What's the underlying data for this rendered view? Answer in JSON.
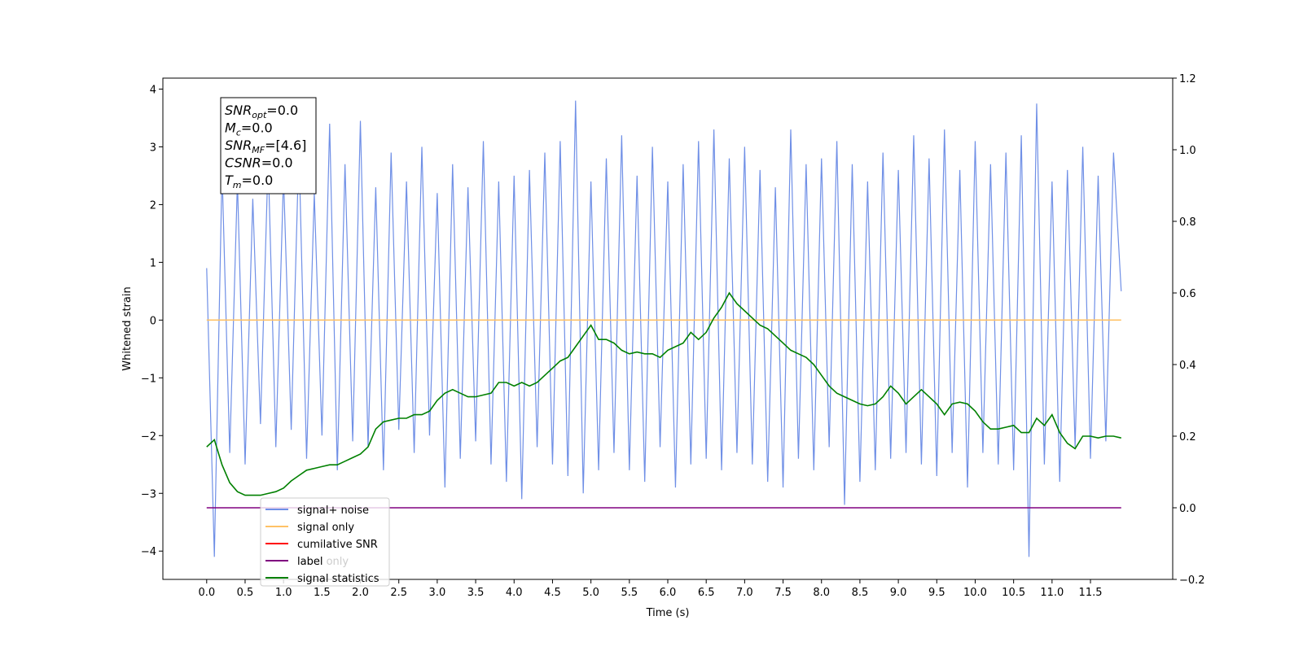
{
  "chart_data": {
    "type": "line",
    "xlabel": "Time (s)",
    "ylabel": "Whitened strain",
    "x": [
      0,
      0.1,
      0.2,
      0.3,
      0.4,
      0.5,
      0.6,
      0.7,
      0.8,
      0.9,
      1,
      1.1,
      1.2,
      1.3,
      1.4,
      1.5,
      1.6,
      1.7,
      1.8,
      1.9,
      2,
      2.1,
      2.2,
      2.3,
      2.4,
      2.5,
      2.6,
      2.7,
      2.8,
      2.9,
      3,
      3.1,
      3.2,
      3.3,
      3.4,
      3.5,
      3.6,
      3.7,
      3.8,
      3.9,
      4,
      4.1,
      4.2,
      4.3,
      4.4,
      4.5,
      4.6,
      4.7,
      4.8,
      4.9,
      5,
      5.1,
      5.2,
      5.3,
      5.4,
      5.5,
      5.6,
      5.7,
      5.8,
      5.9,
      6,
      6.1,
      6.2,
      6.3,
      6.4,
      6.5,
      6.6,
      6.7,
      6.8,
      6.9,
      7,
      7.1,
      7.2,
      7.3,
      7.4,
      7.5,
      7.6,
      7.7,
      7.8,
      7.9,
      8,
      8.1,
      8.2,
      8.3,
      8.4,
      8.5,
      8.6,
      8.7,
      8.8,
      8.9,
      9,
      9.1,
      9.2,
      9.3,
      9.4,
      9.5,
      9.6,
      9.7,
      9.8,
      9.9,
      10,
      10.1,
      10.2,
      10.3,
      10.4,
      10.5,
      10.6,
      10.7,
      10.8,
      10.9,
      11,
      11.1,
      11.2,
      11.3,
      11.4,
      11.5,
      11.6,
      11.7,
      11.8,
      11.9
    ],
    "series": [
      {
        "name": "signal+ noise",
        "color": "#6f8fe6",
        "values": [
          0.9,
          -4.1,
          2.6,
          -2.3,
          2.4,
          -2.5,
          2.1,
          -1.8,
          2.8,
          -2.2,
          2.5,
          -1.9,
          3.0,
          -2.4,
          2.2,
          -2.0,
          3.4,
          -2.6,
          2.7,
          -2.1,
          3.45,
          -2.2,
          2.3,
          -2.6,
          2.9,
          -1.9,
          2.4,
          -2.3,
          3.0,
          -2.0,
          2.2,
          -2.9,
          2.7,
          -2.4,
          2.3,
          -2.1,
          3.1,
          -2.5,
          2.4,
          -2.8,
          2.5,
          -3.1,
          2.6,
          -2.2,
          2.9,
          -2.5,
          3.1,
          -2.7,
          3.8,
          -3.0,
          2.4,
          -2.6,
          2.8,
          -2.3,
          3.2,
          -2.6,
          2.5,
          -2.8,
          3.0,
          -2.2,
          2.4,
          -2.9,
          2.7,
          -2.5,
          3.1,
          -2.4,
          3.3,
          -2.6,
          2.8,
          -2.3,
          3.0,
          -2.5,
          2.6,
          -2.8,
          2.3,
          -2.9,
          3.3,
          -2.4,
          2.7,
          -2.6,
          2.8,
          -2.2,
          3.1,
          -3.2,
          2.7,
          -2.8,
          2.4,
          -2.6,
          2.9,
          -2.4,
          2.6,
          -2.3,
          3.2,
          -2.5,
          2.8,
          -2.7,
          3.3,
          -2.3,
          2.6,
          -2.9,
          3.1,
          -2.3,
          2.7,
          -2.5,
          2.9,
          -2.6,
          3.2,
          -4.1,
          3.75,
          -2.5,
          2.4,
          -2.8,
          2.6,
          -2.2,
          3.0,
          -2.4,
          2.5,
          -2.1,
          2.9,
          0.5
        ]
      },
      {
        "name": "signal only",
        "color": "#ffc266",
        "values": [
          0,
          0,
          0,
          0,
          0,
          0,
          0,
          0,
          0,
          0,
          0,
          0,
          0,
          0,
          0,
          0,
          0,
          0,
          0,
          0,
          0,
          0,
          0,
          0,
          0,
          0,
          0,
          0,
          0,
          0,
          0,
          0,
          0,
          0,
          0,
          0,
          0,
          0,
          0,
          0,
          0,
          0,
          0,
          0,
          0,
          0,
          0,
          0,
          0,
          0,
          0,
          0,
          0,
          0,
          0,
          0,
          0,
          0,
          0,
          0,
          0,
          0,
          0,
          0,
          0,
          0,
          0,
          0,
          0,
          0,
          0,
          0,
          0,
          0,
          0,
          0,
          0,
          0,
          0,
          0,
          0,
          0,
          0,
          0,
          0,
          0,
          0,
          0,
          0,
          0,
          0,
          0,
          0,
          0,
          0,
          0,
          0,
          0,
          0,
          0,
          0,
          0,
          0,
          0,
          0,
          0,
          0,
          0,
          0,
          0,
          0,
          0,
          0,
          0,
          0,
          0,
          0,
          0,
          0,
          0
        ]
      },
      {
        "name": "cumilative SNR",
        "color": "#ff0000",
        "axis": "y2",
        "values": [
          null,
          null,
          null,
          null,
          null,
          null,
          null,
          null,
          null,
          null,
          null,
          null,
          null,
          null,
          null,
          null,
          null,
          null,
          null,
          null,
          null,
          null,
          null,
          null,
          null,
          null,
          null,
          null,
          null,
          null,
          null,
          null,
          null,
          null,
          null,
          null,
          null,
          null,
          null,
          null,
          null,
          null,
          null,
          null,
          null,
          null,
          null,
          null,
          null,
          null,
          null,
          null,
          null,
          null,
          null,
          null,
          null,
          null,
          null,
          null,
          null,
          null,
          null,
          null,
          null,
          null,
          null,
          null,
          null,
          null,
          null,
          null,
          null,
          null,
          null,
          null,
          null,
          null,
          null,
          null,
          null,
          null,
          null,
          null,
          null,
          null,
          null,
          null,
          null,
          null,
          null,
          null,
          null,
          null,
          null,
          null,
          null,
          null,
          null,
          null,
          null,
          null,
          null,
          null,
          null,
          null,
          null,
          null,
          null,
          null,
          null,
          null,
          null,
          null,
          null,
          null,
          null,
          null,
          null,
          null
        ]
      },
      {
        "name": "label",
        "color": "#800080",
        "axis": "y2",
        "values": [
          0,
          0,
          0,
          0,
          0,
          0,
          0,
          0,
          0,
          0,
          0,
          0,
          0,
          0,
          0,
          0,
          0,
          0,
          0,
          0,
          0,
          0,
          0,
          0,
          0,
          0,
          0,
          0,
          0,
          0,
          0,
          0,
          0,
          0,
          0,
          0,
          0,
          0,
          0,
          0,
          0,
          0,
          0,
          0,
          0,
          0,
          0,
          0,
          0,
          0,
          0,
          0,
          0,
          0,
          0,
          0,
          0,
          0,
          0,
          0,
          0,
          0,
          0,
          0,
          0,
          0,
          0,
          0,
          0,
          0,
          0,
          0,
          0,
          0,
          0,
          0,
          0,
          0,
          0,
          0,
          0,
          0,
          0,
          0,
          0,
          0,
          0,
          0,
          0,
          0,
          0,
          0,
          0,
          0,
          0,
          0,
          0,
          0,
          0,
          0,
          0,
          0,
          0,
          0,
          0,
          0,
          0,
          0,
          0,
          0,
          0,
          0,
          0,
          0,
          0,
          0,
          0,
          0,
          0,
          0
        ]
      },
      {
        "name": "signal statistics",
        "color": "#008000",
        "axis": "y2",
        "values": [
          0.17,
          0.19,
          0.12,
          0.07,
          0.045,
          0.035,
          0.035,
          0.035,
          0.04,
          0.045,
          0.055,
          0.075,
          0.09,
          0.105,
          0.11,
          0.115,
          0.12,
          0.12,
          0.13,
          0.14,
          0.15,
          0.17,
          0.22,
          0.24,
          0.245,
          0.25,
          0.25,
          0.26,
          0.26,
          0.27,
          0.3,
          0.32,
          0.33,
          0.32,
          0.31,
          0.31,
          0.315,
          0.32,
          0.35,
          0.35,
          0.34,
          0.35,
          0.34,
          0.35,
          0.37,
          0.39,
          0.41,
          0.42,
          0.45,
          0.48,
          0.51,
          0.47,
          0.47,
          0.46,
          0.44,
          0.43,
          0.435,
          0.43,
          0.43,
          0.42,
          0.44,
          0.45,
          0.46,
          0.49,
          0.47,
          0.49,
          0.53,
          0.56,
          0.6,
          0.57,
          0.55,
          0.53,
          0.51,
          0.5,
          0.48,
          0.46,
          0.44,
          0.43,
          0.42,
          0.4,
          0.37,
          0.34,
          0.32,
          0.31,
          0.3,
          0.29,
          0.285,
          0.29,
          0.31,
          0.34,
          0.32,
          0.29,
          0.31,
          0.33,
          0.31,
          0.29,
          0.26,
          0.29,
          0.295,
          0.29,
          0.27,
          0.24,
          0.22,
          0.22,
          0.225,
          0.23,
          0.21,
          0.21,
          0.25,
          0.23,
          0.26,
          0.21,
          0.18,
          0.165,
          0.2,
          0.2,
          0.195,
          0.2,
          0.2,
          0.195
        ]
      }
    ],
    "legend_overlay": "label only",
    "annotations": [
      {
        "base": "SNR",
        "sub": "opt",
        "text": "=0.0"
      },
      {
        "base": "M",
        "sub": "c",
        "text": "=0.0"
      },
      {
        "base": "SNR",
        "sub": "MF",
        "text": "=[4.6]"
      },
      {
        "base": "CSNR",
        "text": "=0.0"
      },
      {
        "base": "T",
        "sub": "m",
        "text": "=0.0"
      }
    ],
    "xlim": [
      -0.57,
      12.57
    ],
    "xticks": [
      {
        "value": 0,
        "label": "0.0"
      },
      {
        "value": 0.5,
        "label": "0.5"
      },
      {
        "value": 1,
        "label": "1.0"
      },
      {
        "value": 1.5,
        "label": "1.5"
      },
      {
        "value": 2,
        "label": "2.0"
      },
      {
        "value": 2.5,
        "label": "2.5"
      },
      {
        "value": 3,
        "label": "3.0"
      },
      {
        "value": 3.5,
        "label": "3.5"
      },
      {
        "value": 4,
        "label": "4.0"
      },
      {
        "value": 4.5,
        "label": "4.5"
      },
      {
        "value": 5,
        "label": "5.0"
      },
      {
        "value": 5.5,
        "label": "5.5"
      },
      {
        "value": 6,
        "label": "6.0"
      },
      {
        "value": 6.5,
        "label": "6.5"
      },
      {
        "value": 7,
        "label": "7.0"
      },
      {
        "value": 7.5,
        "label": "7.5"
      },
      {
        "value": 8,
        "label": "8.0"
      },
      {
        "value": 8.5,
        "label": "8.5"
      },
      {
        "value": 9,
        "label": "9.0"
      },
      {
        "value": 9.5,
        "label": "9.5"
      },
      {
        "value": 10,
        "label": "10.0"
      },
      {
        "value": 10.5,
        "label": "10.5"
      },
      {
        "value": 11,
        "label": "11.0"
      },
      {
        "value": 11.5,
        "label": "11.5"
      }
    ],
    "ylim": [
      -4.49,
      4.19
    ],
    "yticks": [
      {
        "value": -4,
        "label": "−4"
      },
      {
        "value": -3,
        "label": "−3"
      },
      {
        "value": -2,
        "label": "−2"
      },
      {
        "value": -1,
        "label": "−1"
      },
      0,
      1,
      2,
      3,
      4
    ],
    "y2lim": [
      -0.2,
      1.2
    ],
    "y2ticks": [
      {
        "value": -0.2,
        "label": "−0.2"
      },
      {
        "value": 0,
        "label": "0.0"
      },
      0.2,
      0.4,
      0.6,
      0.8,
      {
        "value": 1,
        "label": "1.0"
      },
      1.2
    ]
  }
}
